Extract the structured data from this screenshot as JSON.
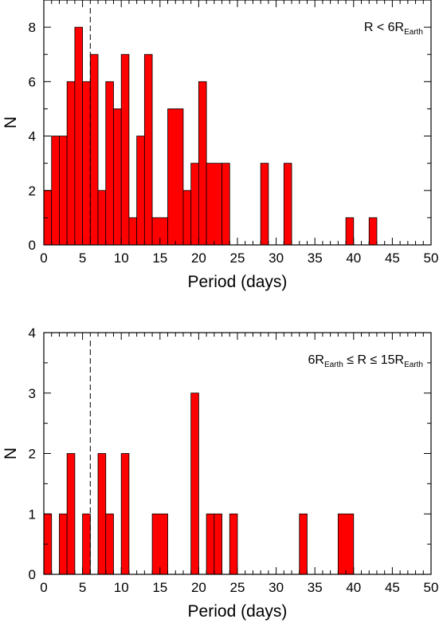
{
  "chart_data": [
    {
      "type": "bar",
      "subtype": "histogram",
      "xlabel": "Period (days)",
      "ylabel": "N",
      "xlim": [
        0,
        50
      ],
      "ylim": [
        0,
        9
      ],
      "x_ticks": [
        0,
        5,
        10,
        15,
        20,
        25,
        30,
        35,
        40,
        45,
        50
      ],
      "y_ticks": [
        0,
        2,
        4,
        6,
        8
      ],
      "annotation": {
        "main": "R < 6R",
        "sub": "Earth"
      },
      "reference_line": {
        "x": 6,
        "style": "dashed"
      },
      "bar_color": "#ff0000",
      "bins": [
        {
          "x0": 0,
          "x1": 1,
          "value": 2
        },
        {
          "x0": 1,
          "x1": 2,
          "value": 4
        },
        {
          "x0": 2,
          "x1": 3,
          "value": 4
        },
        {
          "x0": 3,
          "x1": 4,
          "value": 6
        },
        {
          "x0": 4,
          "x1": 5,
          "value": 8
        },
        {
          "x0": 5,
          "x1": 6,
          "value": 6
        },
        {
          "x0": 6,
          "x1": 7,
          "value": 7
        },
        {
          "x0": 7,
          "x1": 8,
          "value": 2
        },
        {
          "x0": 8,
          "x1": 9,
          "value": 6
        },
        {
          "x0": 9,
          "x1": 10,
          "value": 5
        },
        {
          "x0": 10,
          "x1": 11,
          "value": 7
        },
        {
          "x0": 11,
          "x1": 12,
          "value": 1
        },
        {
          "x0": 12,
          "x1": 13,
          "value": 4
        },
        {
          "x0": 13,
          "x1": 14,
          "value": 7
        },
        {
          "x0": 14,
          "x1": 16,
          "value": 1
        },
        {
          "x0": 16,
          "x1": 18,
          "value": 5
        },
        {
          "x0": 18,
          "x1": 19,
          "value": 2
        },
        {
          "x0": 19,
          "x1": 20,
          "value": 3
        },
        {
          "x0": 20,
          "x1": 21,
          "value": 6
        },
        {
          "x0": 21,
          "x1": 23,
          "value": 3
        },
        {
          "x0": 23,
          "x1": 24,
          "value": 3
        },
        {
          "x0": 28,
          "x1": 29,
          "value": 3
        },
        {
          "x0": 31,
          "x1": 32,
          "value": 3
        },
        {
          "x0": 39,
          "x1": 40,
          "value": 1
        },
        {
          "x0": 42,
          "x1": 43,
          "value": 1
        }
      ]
    },
    {
      "type": "bar",
      "subtype": "histogram",
      "xlabel": "Period (days)",
      "ylabel": "N",
      "xlim": [
        0,
        50
      ],
      "ylim": [
        0,
        4
      ],
      "x_ticks": [
        0,
        5,
        10,
        15,
        20,
        25,
        30,
        35,
        40,
        45,
        50
      ],
      "y_ticks": [
        0,
        1,
        2,
        3,
        4
      ],
      "annotation": {
        "main": "6R",
        "sub": "Earth",
        "middle": " ≤ R ≤ 15R",
        "sub2": "Earth"
      },
      "reference_line": {
        "x": 6,
        "style": "dashed"
      },
      "bar_color": "#ff0000",
      "bins": [
        {
          "x0": 0,
          "x1": 1,
          "value": 1
        },
        {
          "x0": 2,
          "x1": 3,
          "value": 1
        },
        {
          "x0": 3,
          "x1": 4,
          "value": 2
        },
        {
          "x0": 5,
          "x1": 6,
          "value": 1
        },
        {
          "x0": 7,
          "x1": 8,
          "value": 2
        },
        {
          "x0": 8,
          "x1": 9,
          "value": 1
        },
        {
          "x0": 10,
          "x1": 11,
          "value": 2
        },
        {
          "x0": 14,
          "x1": 16,
          "value": 1
        },
        {
          "x0": 19,
          "x1": 20,
          "value": 3
        },
        {
          "x0": 21,
          "x1": 22,
          "value": 1
        },
        {
          "x0": 22,
          "x1": 23,
          "value": 1
        },
        {
          "x0": 24,
          "x1": 25,
          "value": 1
        },
        {
          "x0": 33,
          "x1": 34,
          "value": 1
        },
        {
          "x0": 38,
          "x1": 40,
          "value": 1
        }
      ]
    }
  ]
}
